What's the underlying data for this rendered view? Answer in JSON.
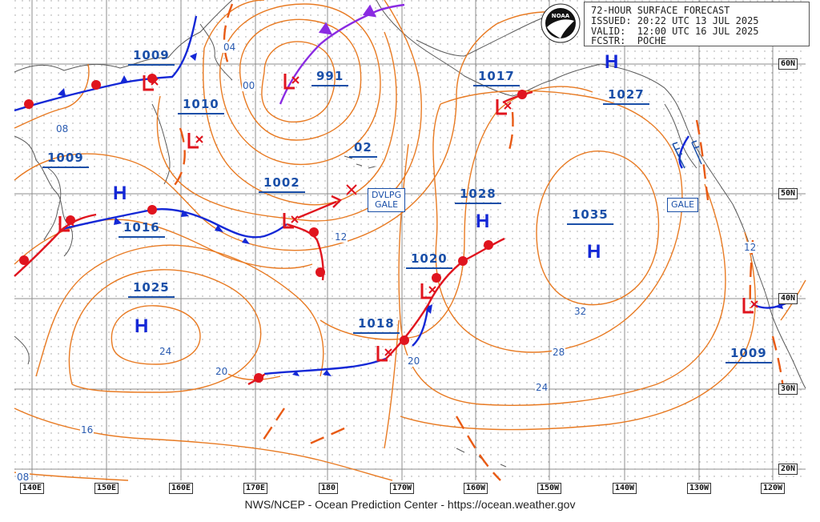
{
  "header": {
    "line1": "72-HOUR SURFACE FORECAST",
    "line2": "ISSUED: 20:22 UTC 13 JUL 2025",
    "line3": "VALID:  12:00 UTC 16 JUL 2025",
    "line4": "FCSTR:  POCHE"
  },
  "logo_text": "NOAA",
  "footer": "NWS/NCEP - Ocean Prediction Center - https://ocean.weather.gov",
  "pressure_labels": {
    "p1009_nw": "1009",
    "p1010": "1010",
    "p991": "991",
    "p1017": "1017",
    "p1027": "1027",
    "p1009_w": "1009",
    "p1002": "1002",
    "p1028": "1028",
    "p1035": "1035",
    "p1016": "1016",
    "p1020": "1020",
    "p1025": "1025",
    "p1018": "1018",
    "p1009_e": "1009",
    "p02": "02"
  },
  "isobar_labels": {
    "l04": "04",
    "l00": "00",
    "l08a": "08",
    "l12a": "12",
    "l12b": "12",
    "l32": "32",
    "l28": "28",
    "l24a": "24",
    "l24b": "24",
    "l20a": "20",
    "l20b": "20",
    "l16": "16",
    "l08b": "08"
  },
  "highs": [
    "H",
    "H",
    "H",
    "H",
    "H"
  ],
  "warnings": {
    "dvlpg_line1": "DVLPG",
    "dvlpg_line2": "GALE",
    "gale": "GALE"
  },
  "longitudes": [
    "140E",
    "150E",
    "160E",
    "170E",
    "180",
    "170W",
    "160W",
    "150W",
    "140W",
    "130W",
    "120W"
  ],
  "latitudes": [
    "60N",
    "50N",
    "40N",
    "30N",
    "20N"
  ],
  "colors": {
    "isobar": "#e87a22",
    "cold_front": "#1428d6",
    "warm_front": "#e0141e",
    "occluded": "#8a2be2",
    "trough": "#e85a14",
    "land": "#555555",
    "grid": "#8a8a8a",
    "label": "#1a4fa8"
  }
}
